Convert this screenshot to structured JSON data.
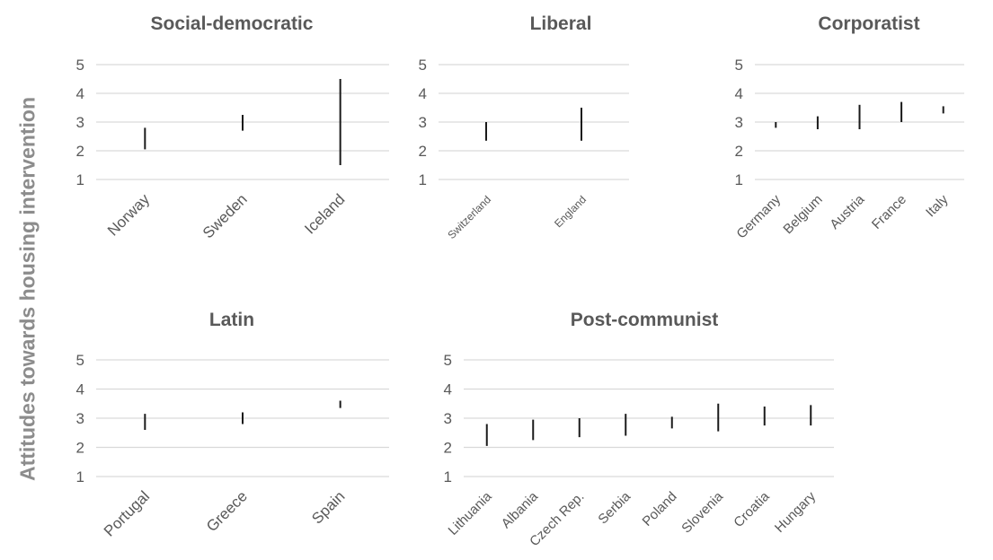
{
  "y_axis_label": "Attitudes towards housing intervention",
  "chart_data": [
    {
      "type": "range",
      "title": "Social-democratic",
      "ylim": [
        1,
        5
      ],
      "yticks": [
        "1",
        "2",
        "3",
        "4",
        "5"
      ],
      "grid": true,
      "categories": [
        "Norway",
        "Sweden",
        "Iceland"
      ],
      "low": [
        2.05,
        2.7,
        1.5
      ],
      "high": [
        2.8,
        3.25,
        4.5
      ]
    },
    {
      "type": "range",
      "title": "Liberal",
      "ylim": [
        1,
        5
      ],
      "yticks": [
        "1",
        "2",
        "3",
        "4",
        "5"
      ],
      "grid": true,
      "categories": [
        "Switzerland",
        "England"
      ],
      "low": [
        2.35,
        2.35
      ],
      "high": [
        3.0,
        3.5
      ]
    },
    {
      "type": "range",
      "title": "Corporatist",
      "ylim": [
        1,
        5
      ],
      "yticks": [
        "1",
        "2",
        "3",
        "4",
        "5"
      ],
      "grid": true,
      "categories": [
        "Germany",
        "Belgium",
        "Austria",
        "France",
        "Italy"
      ],
      "low": [
        2.8,
        2.75,
        2.75,
        3.0,
        3.3
      ],
      "high": [
        3.0,
        3.2,
        3.6,
        3.7,
        3.55
      ]
    },
    {
      "type": "range",
      "title": "Latin",
      "ylim": [
        1,
        5
      ],
      "yticks": [
        "1",
        "2",
        "3",
        "4",
        "5"
      ],
      "grid": true,
      "categories": [
        "Portugal",
        "Greece",
        "Spain"
      ],
      "low": [
        2.6,
        2.8,
        3.35
      ],
      "high": [
        3.15,
        3.2,
        3.6
      ]
    },
    {
      "type": "range",
      "title": "Post-communist",
      "ylim": [
        1,
        5
      ],
      "yticks": [
        "1",
        "2",
        "3",
        "4",
        "5"
      ],
      "grid": true,
      "categories": [
        "Lithuania",
        "Albania",
        "Czech Rep.",
        "Serbia",
        "Poland",
        "Slovenia",
        "Croatia",
        "Hungary"
      ],
      "low": [
        2.05,
        2.25,
        2.35,
        2.4,
        2.65,
        2.55,
        2.75,
        2.75
      ],
      "high": [
        2.8,
        2.95,
        3.0,
        3.15,
        3.05,
        3.5,
        3.4,
        3.45
      ]
    }
  ]
}
